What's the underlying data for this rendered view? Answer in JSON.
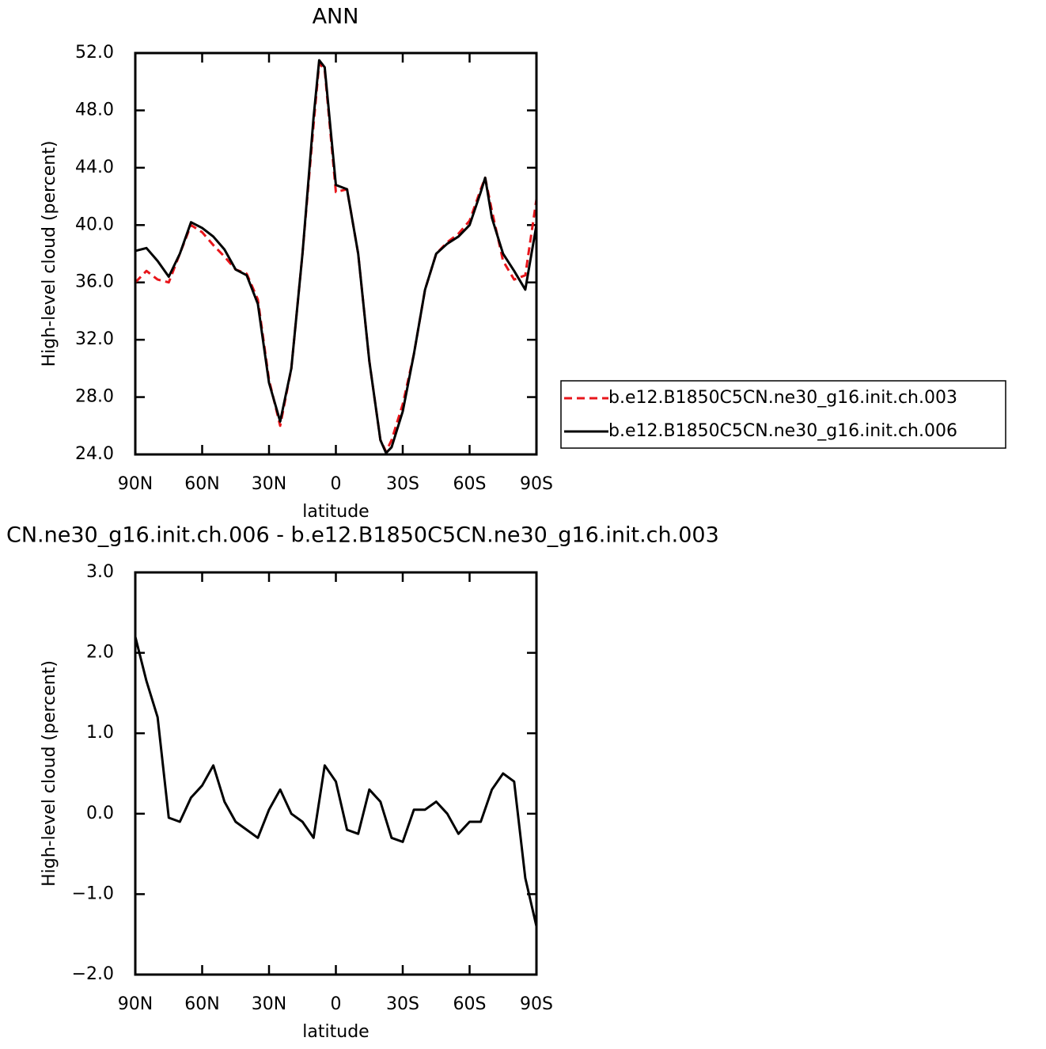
{
  "chart_data": [
    {
      "type": "line",
      "title": "ANN",
      "x_label": "latitude",
      "y_label": "High-level cloud (percent)",
      "x": [
        90,
        85,
        80,
        75,
        70,
        65,
        60,
        55,
        50,
        45,
        40,
        35,
        30,
        25,
        20,
        15,
        10,
        7.5,
        5,
        0,
        -5,
        -10,
        -15,
        -20,
        -22.5,
        -25,
        -30,
        -35,
        -40,
        -45,
        -50,
        -55,
        -60,
        -65,
        -67,
        -70,
        -75,
        -80,
        -85,
        -90
      ],
      "series": [
        {
          "name": "b.e12.B1850C5CN.ne30_g16.init.ch.003",
          "color": "#e8161b",
          "linestyle": "dashed",
          "values": [
            36.0,
            36.8,
            36.2,
            36.0,
            38.0,
            40.0,
            39.5,
            38.6,
            37.8,
            36.9,
            36.6,
            34.8,
            29.2,
            26.0,
            30.0,
            38.0,
            47.0,
            51.3,
            50.8,
            42.3,
            42.5,
            38.0,
            30.5,
            25.0,
            24.2,
            25.0,
            27.5,
            31.0,
            35.5,
            38.0,
            38.8,
            39.4,
            40.3,
            42.5,
            43.3,
            41.0,
            37.5,
            36.2,
            36.5,
            41.8
          ]
        },
        {
          "name": "b.e12.B1850C5CN.ne30_g16.init.ch.006",
          "color": "#000000",
          "linestyle": "solid",
          "values": [
            38.2,
            38.4,
            37.5,
            36.4,
            38.0,
            40.2,
            39.8,
            39.2,
            38.3,
            36.9,
            36.5,
            34.5,
            29.0,
            26.3,
            30.0,
            38.0,
            47.5,
            51.5,
            51.0,
            42.8,
            42.5,
            38.0,
            30.5,
            25.0,
            24.1,
            24.5,
            27.0,
            31.0,
            35.5,
            38.0,
            38.7,
            39.2,
            40.0,
            42.3,
            43.3,
            40.5,
            38.0,
            36.8,
            35.5,
            40.0
          ]
        }
      ],
      "xlim": [
        90,
        -90
      ],
      "xticks": [
        {
          "value": 90,
          "label": "90N"
        },
        {
          "value": 60,
          "label": "60N"
        },
        {
          "value": 30,
          "label": "30N"
        },
        0,
        {
          "value": -30,
          "label": "30S"
        },
        {
          "value": -60,
          "label": "60S"
        },
        {
          "value": -90,
          "label": "90S"
        }
      ],
      "ylim": [
        24,
        52
      ],
      "yticks": [
        {
          "value": 24,
          "label": "24.0"
        },
        {
          "value": 28,
          "label": "28.0"
        },
        {
          "value": 32,
          "label": "32.0"
        },
        {
          "value": 36,
          "label": "36.0"
        },
        {
          "value": 40,
          "label": "40.0"
        },
        {
          "value": 44,
          "label": "44.0"
        },
        {
          "value": 48,
          "label": "48.0"
        },
        {
          "value": 52,
          "label": "52.0"
        }
      ],
      "legend": "right"
    },
    {
      "type": "line",
      "title": "CN.ne30_g16.init.ch.006 - b.e12.B1850C5CN.ne30_g16.init.ch.003",
      "x_label": "latitude",
      "y_label": "High-level cloud (percent)",
      "x": [
        90,
        85,
        80,
        75,
        70,
        65,
        60,
        55,
        50,
        45,
        40,
        35,
        30,
        25,
        20,
        15,
        10,
        5,
        0,
        -5,
        -10,
        -15,
        -20,
        -25,
        -30,
        -35,
        -40,
        -45,
        -50,
        -55,
        -60,
        -65,
        -70,
        -75,
        -80,
        -85,
        -90
      ],
      "series": [
        {
          "color": "#000000",
          "linestyle": "solid",
          "values": [
            2.2,
            1.65,
            1.2,
            -0.05,
            -0.1,
            0.2,
            0.35,
            0.6,
            0.15,
            -0.1,
            -0.2,
            -0.3,
            0.05,
            0.3,
            0.0,
            -0.1,
            -0.3,
            0.6,
            0.4,
            -0.2,
            -0.25,
            0.3,
            0.15,
            -0.3,
            -0.35,
            0.05,
            0.05,
            0.15,
            0.0,
            -0.25,
            -0.1,
            -0.1,
            0.3,
            0.5,
            0.4,
            -0.8,
            -1.4
          ]
        }
      ],
      "xlim": [
        90,
        -90
      ],
      "xticks": [
        {
          "value": 90,
          "label": "90N"
        },
        {
          "value": 60,
          "label": "60N"
        },
        {
          "value": 30,
          "label": "30N"
        },
        0,
        {
          "value": -30,
          "label": "30S"
        },
        {
          "value": -60,
          "label": "60S"
        },
        {
          "value": -90,
          "label": "90S"
        }
      ],
      "ylim": [
        -2,
        3
      ],
      "yticks": [
        {
          "value": -2,
          "label": "−2.0"
        },
        {
          "value": -1,
          "label": "−1.0"
        },
        {
          "value": 0,
          "label": "0.0"
        },
        {
          "value": 1,
          "label": "1.0"
        },
        {
          "value": 2,
          "label": "2.0"
        },
        {
          "value": 3,
          "label": "3.0"
        }
      ]
    }
  ]
}
